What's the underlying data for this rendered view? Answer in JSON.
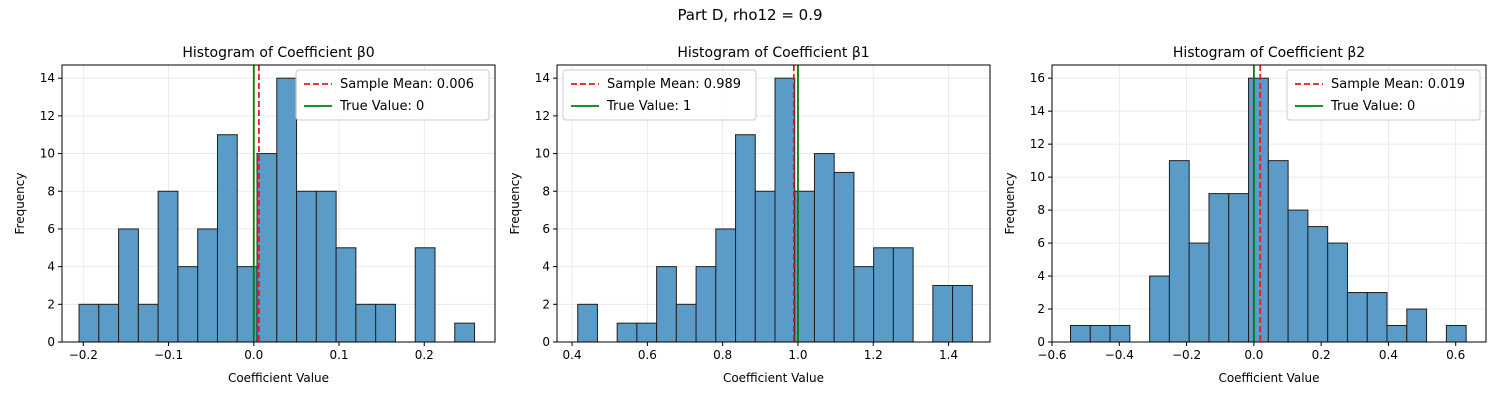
{
  "figure_title": "Part D, rho12 = 0.9",
  "colors": {
    "bar_fill": "#5b9bc8",
    "bar_edge": "#1f1f1f",
    "mean_line": "#e41a1c",
    "true_line": "#008000",
    "grid": "#e6e6e6"
  },
  "chart_data": [
    {
      "type": "bar",
      "title": "Histogram of Coefficient β0",
      "xlabel": "Coefficient Value",
      "ylabel": "Frequency",
      "xlim": [
        -0.225,
        0.283
      ],
      "ylim": [
        0,
        14.7
      ],
      "xticks": [
        -0.2,
        -0.1,
        0.0,
        0.1,
        0.2
      ],
      "xtick_labels": [
        "−0.2",
        "−0.1",
        "0.0",
        "0.1",
        "0.2"
      ],
      "yticks": [
        0,
        2,
        4,
        6,
        8,
        10,
        12,
        14
      ],
      "bin_start": -0.205,
      "bin_width": 0.0232,
      "counts": [
        2,
        2,
        6,
        2,
        8,
        4,
        6,
        11,
        4,
        10,
        14,
        8,
        8,
        5,
        2,
        2,
        0,
        5,
        0,
        1
      ],
      "sample_mean": 0.006,
      "true_value": 0,
      "legend": [
        "Sample Mean: 0.006",
        "True Value: 0"
      ],
      "legend_position": "top-right"
    },
    {
      "type": "bar",
      "title": "Histogram of Coefficient β1",
      "xlabel": "Coefficient Value",
      "ylabel": "Frequency",
      "xlim": [
        0.36,
        1.51
      ],
      "ylim": [
        0,
        14.7
      ],
      "xticks": [
        0.4,
        0.6,
        0.8,
        1.0,
        1.2,
        1.4
      ],
      "xtick_labels": [
        "0.4",
        "0.6",
        "0.8",
        "1.0",
        "1.2",
        "1.4"
      ],
      "yticks": [
        0,
        2,
        4,
        6,
        8,
        10,
        12,
        14
      ],
      "bin_start": 0.415,
      "bin_width": 0.0524,
      "counts": [
        2,
        0,
        1,
        1,
        4,
        2,
        4,
        6,
        11,
        8,
        14,
        8,
        10,
        9,
        4,
        5,
        5,
        0,
        3,
        3
      ],
      "sample_mean": 0.989,
      "true_value": 1,
      "legend": [
        "Sample Mean: 0.989",
        "True Value: 1"
      ],
      "legend_position": "top-left"
    },
    {
      "type": "bar",
      "title": "Histogram of Coefficient β2",
      "xlabel": "Coefficient Value",
      "ylabel": "Frequency",
      "xlim": [
        -0.6,
        0.69
      ],
      "ylim": [
        0,
        16.8
      ],
      "xticks": [
        -0.6,
        -0.4,
        -0.2,
        0.0,
        0.2,
        0.4,
        0.6
      ],
      "xtick_labels": [
        "−0.6",
        "−0.4",
        "−0.2",
        "0.0",
        "0.2",
        "0.4",
        "0.6"
      ],
      "yticks": [
        0,
        2,
        4,
        6,
        8,
        10,
        12,
        14,
        16
      ],
      "bin_start": -0.545,
      "bin_width": 0.0588,
      "counts": [
        1,
        1,
        1,
        0,
        4,
        11,
        6,
        9,
        9,
        16,
        11,
        8,
        7,
        6,
        3,
        3,
        1,
        2,
        0,
        1
      ],
      "sample_mean": 0.019,
      "true_value": 0,
      "legend": [
        "Sample Mean: 0.019",
        "True Value: 0"
      ],
      "legend_position": "top-right"
    }
  ]
}
